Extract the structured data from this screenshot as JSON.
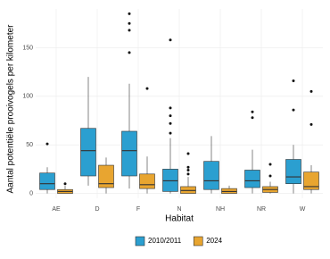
{
  "chart_data": {
    "type": "boxplot",
    "x_label": "Habitat",
    "y_label": "Aantal potentiële prooivogels per kilometer",
    "categories": [
      "AE",
      "D",
      "F",
      "N",
      "NH",
      "NR",
      "W"
    ],
    "ylim": [
      -5,
      190
    ],
    "yticks": [
      0,
      50,
      100,
      150
    ],
    "grid": true,
    "legend": "bottom",
    "series": [
      {
        "name": "2010/2011",
        "color": "#2b9fd0",
        "values": [
          {
            "min": 0,
            "q1": 4,
            "median": 10,
            "q3": 21,
            "max": 27,
            "outliers": [
              51
            ]
          },
          {
            "min": 8,
            "q1": 18,
            "median": 44,
            "q3": 67,
            "max": 120,
            "outliers": []
          },
          {
            "min": 5,
            "q1": 18,
            "median": 44,
            "q3": 64,
            "max": 113,
            "outliers": [
              145,
              168,
              175,
              185
            ]
          },
          {
            "min": 0,
            "q1": 2,
            "median": 13,
            "q3": 25,
            "max": 57,
            "outliers": [
              62,
              72,
              80,
              88,
              158
            ]
          },
          {
            "min": 0,
            "q1": 4,
            "median": 13,
            "q3": 33,
            "max": 59,
            "outliers": []
          },
          {
            "min": 0,
            "q1": 6,
            "median": 13,
            "q3": 24,
            "max": 45,
            "outliers": [
              78,
              84
            ]
          },
          {
            "min": 0,
            "q1": 10,
            "median": 17,
            "q3": 35,
            "max": 50,
            "outliers": [
              86,
              116
            ]
          }
        ]
      },
      {
        "name": "2024",
        "color": "#e8a530",
        "values": [
          {
            "min": 0,
            "q1": 0,
            "median": 2,
            "q3": 4,
            "max": 8,
            "outliers": [
              10
            ]
          },
          {
            "min": 0,
            "q1": 6,
            "median": 10,
            "q3": 29,
            "max": 37,
            "outliers": []
          },
          {
            "min": 0,
            "q1": 5,
            "median": 9,
            "q3": 20,
            "max": 38,
            "outliers": [
              108
            ]
          },
          {
            "min": 0,
            "q1": 0,
            "median": 3,
            "q3": 7,
            "max": 17,
            "outliers": [
              20,
              24,
              27,
              41
            ]
          },
          {
            "min": 0,
            "q1": 0,
            "median": 2,
            "q3": 5,
            "max": 8,
            "outliers": []
          },
          {
            "min": 0,
            "q1": 1,
            "median": 4,
            "q3": 7,
            "max": 12,
            "outliers": [
              18,
              30
            ]
          },
          {
            "min": 0,
            "q1": 4,
            "median": 7,
            "q3": 22,
            "max": 29,
            "outliers": [
              71,
              105
            ]
          }
        ]
      }
    ]
  }
}
